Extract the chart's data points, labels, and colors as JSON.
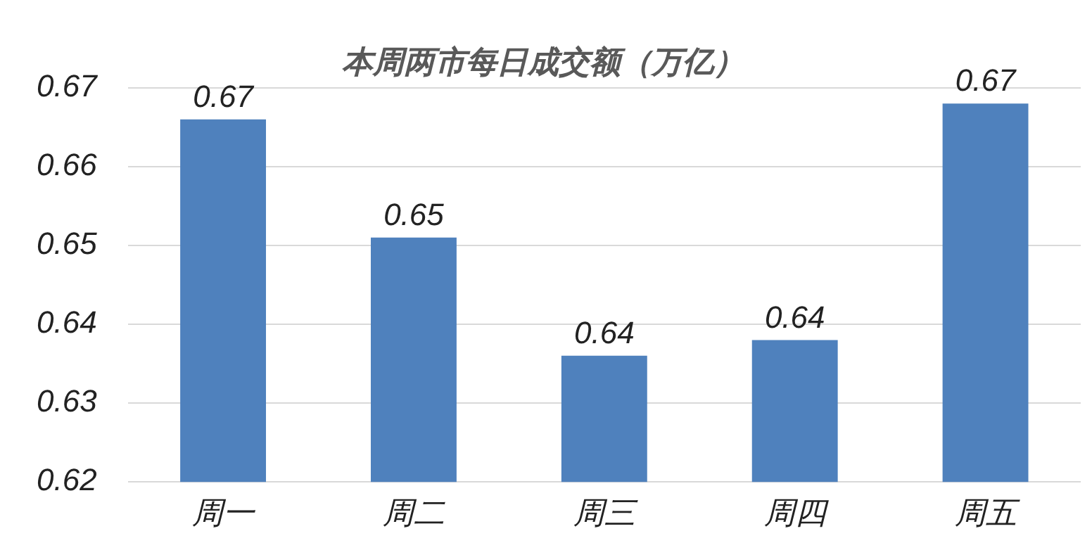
{
  "chart_data": {
    "type": "bar",
    "title": "本周两市每日成交额（万亿）",
    "categories": [
      "周一",
      "周二",
      "周三",
      "周四",
      "周五"
    ],
    "values": [
      0.666,
      0.651,
      0.636,
      0.638,
      0.668
    ],
    "value_labels": [
      "0.67",
      "0.65",
      "0.64",
      "0.64",
      "0.67"
    ],
    "color": "#4f81bd",
    "ylim": [
      0.62,
      0.67
    ],
    "yticks": [
      0.62,
      0.63,
      0.64,
      0.65,
      0.66,
      0.67
    ],
    "grid": "y",
    "legend": false
  }
}
